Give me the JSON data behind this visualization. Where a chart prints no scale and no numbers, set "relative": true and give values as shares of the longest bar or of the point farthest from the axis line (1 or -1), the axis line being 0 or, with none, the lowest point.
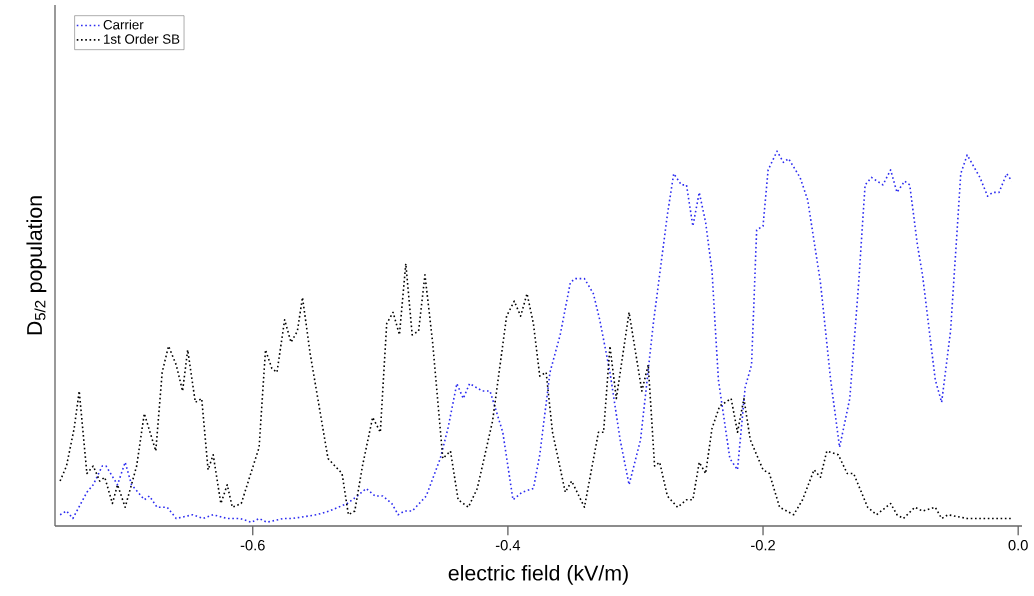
{
  "chart_data": {
    "type": "line",
    "relative": true,
    "xlabel": "electric field (kV/m)",
    "ylabel": "D$_{5/2}$ population",
    "xlim": [
      -0.755,
      0.003
    ],
    "xticks": [
      -0.6,
      -0.4,
      -0.2,
      {
        "value": 0,
        "label": "0.0"
      }
    ],
    "legend": "top left",
    "marker": "none",
    "line_style": "dotted",
    "grid": false,
    "series": [
      {
        "name": "Carrier",
        "color": "#2b2bf0",
        "x": [
          -0.751,
          -0.746,
          -0.741,
          -0.73,
          -0.725,
          -0.718,
          -0.715,
          -0.706,
          -0.7,
          -0.695,
          -0.685,
          -0.681,
          -0.675,
          -0.667,
          -0.66,
          -0.647,
          -0.639,
          -0.631,
          -0.62,
          -0.61,
          -0.601,
          -0.595,
          -0.589,
          -0.576,
          -0.569,
          -0.55,
          -0.54,
          -0.526,
          -0.518,
          -0.511,
          -0.504,
          -0.498,
          -0.491,
          -0.486,
          -0.481,
          -0.475,
          -0.464,
          -0.453,
          -0.447,
          -0.44,
          -0.435,
          -0.43,
          -0.42,
          -0.414,
          -0.404,
          -0.396,
          -0.389,
          -0.38,
          -0.375,
          -0.367,
          -0.359,
          -0.351,
          -0.347,
          -0.34,
          -0.333,
          -0.328,
          -0.32,
          -0.312,
          -0.305,
          -0.296,
          -0.286,
          -0.275,
          -0.27,
          -0.264,
          -0.26,
          -0.255,
          -0.25,
          -0.245,
          -0.24,
          -0.235,
          -0.226,
          -0.22,
          -0.214,
          -0.209,
          -0.205,
          -0.2,
          -0.196,
          -0.189,
          -0.184,
          -0.18,
          -0.171,
          -0.165,
          -0.155,
          -0.147,
          -0.14,
          -0.132,
          -0.125,
          -0.12,
          -0.115,
          -0.106,
          -0.1,
          -0.095,
          -0.089,
          -0.085,
          -0.079,
          -0.075,
          -0.065,
          -0.06,
          -0.053,
          -0.045,
          -0.04,
          -0.03,
          -0.024,
          -0.02,
          -0.015,
          -0.009,
          -0.005
        ],
        "values": [
          0.03,
          0.04,
          0.02,
          0.09,
          0.11,
          0.16,
          0.16,
          0.11,
          0.17,
          0.11,
          0.07,
          0.08,
          0.05,
          0.05,
          0.02,
          0.03,
          0.02,
          0.03,
          0.02,
          0.02,
          0.01,
          0.02,
          0.01,
          0.02,
          0.02,
          0.03,
          0.04,
          0.06,
          0.08,
          0.1,
          0.08,
          0.08,
          0.06,
          0.03,
          0.04,
          0.04,
          0.08,
          0.18,
          0.26,
          0.38,
          0.34,
          0.38,
          0.36,
          0.36,
          0.25,
          0.07,
          0.09,
          0.1,
          0.19,
          0.41,
          0.51,
          0.65,
          0.66,
          0.66,
          0.62,
          0.55,
          0.41,
          0.23,
          0.11,
          0.23,
          0.54,
          0.83,
          0.94,
          0.91,
          0.91,
          0.8,
          0.89,
          0.81,
          0.68,
          0.39,
          0.18,
          0.15,
          0.37,
          0.43,
          0.79,
          0.8,
          0.95,
          1.0,
          0.97,
          0.98,
          0.93,
          0.87,
          0.65,
          0.39,
          0.21,
          0.34,
          0.65,
          0.91,
          0.93,
          0.91,
          0.95,
          0.89,
          0.92,
          0.91,
          0.75,
          0.67,
          0.39,
          0.33,
          0.52,
          0.94,
          0.99,
          0.93,
          0.88,
          0.89,
          0.89,
          0.94,
          0.92
        ]
      },
      {
        "name": "1st Order SB",
        "color": "#000000",
        "x": [
          -0.751,
          -0.746,
          -0.74,
          -0.736,
          -0.73,
          -0.725,
          -0.72,
          -0.716,
          -0.71,
          -0.706,
          -0.7,
          -0.691,
          -0.685,
          -0.676,
          -0.671,
          -0.666,
          -0.66,
          -0.655,
          -0.651,
          -0.645,
          -0.64,
          -0.635,
          -0.631,
          -0.625,
          -0.62,
          -0.616,
          -0.609,
          -0.595,
          -0.59,
          -0.585,
          -0.581,
          -0.575,
          -0.57,
          -0.565,
          -0.561,
          -0.555,
          -0.55,
          -0.541,
          -0.53,
          -0.525,
          -0.52,
          -0.514,
          -0.506,
          -0.5,
          -0.495,
          -0.49,
          -0.485,
          -0.48,
          -0.475,
          -0.47,
          -0.465,
          -0.459,
          -0.451,
          -0.445,
          -0.439,
          -0.431,
          -0.424,
          -0.412,
          -0.401,
          -0.395,
          -0.39,
          -0.385,
          -0.38,
          -0.375,
          -0.37,
          -0.365,
          -0.355,
          -0.35,
          -0.34,
          -0.329,
          -0.325,
          -0.32,
          -0.315,
          -0.305,
          -0.295,
          -0.29,
          -0.285,
          -0.281,
          -0.275,
          -0.267,
          -0.26,
          -0.255,
          -0.25,
          -0.245,
          -0.24,
          -0.234,
          -0.225,
          -0.22,
          -0.215,
          -0.21,
          -0.2,
          -0.195,
          -0.187,
          -0.176,
          -0.169,
          -0.16,
          -0.155,
          -0.15,
          -0.141,
          -0.134,
          -0.129,
          -0.118,
          -0.111,
          -0.1,
          -0.095,
          -0.09,
          -0.081,
          -0.075,
          -0.065,
          -0.06,
          -0.055,
          -0.04,
          -0.03,
          -0.024,
          -0.005
        ],
        "values": [
          0.12,
          0.16,
          0.26,
          0.36,
          0.14,
          0.16,
          0.12,
          0.13,
          0.06,
          0.11,
          0.05,
          0.16,
          0.3,
          0.2,
          0.41,
          0.48,
          0.43,
          0.36,
          0.47,
          0.33,
          0.34,
          0.15,
          0.19,
          0.06,
          0.11,
          0.05,
          0.06,
          0.21,
          0.47,
          0.42,
          0.41,
          0.55,
          0.49,
          0.52,
          0.61,
          0.46,
          0.36,
          0.18,
          0.14,
          0.03,
          0.04,
          0.16,
          0.29,
          0.25,
          0.54,
          0.57,
          0.51,
          0.7,
          0.51,
          0.52,
          0.67,
          0.49,
          0.18,
          0.2,
          0.07,
          0.05,
          0.1,
          0.28,
          0.56,
          0.6,
          0.56,
          0.62,
          0.54,
          0.4,
          0.41,
          0.25,
          0.09,
          0.12,
          0.05,
          0.25,
          0.25,
          0.48,
          0.34,
          0.57,
          0.36,
          0.43,
          0.16,
          0.17,
          0.08,
          0.05,
          0.07,
          0.07,
          0.17,
          0.14,
          0.26,
          0.32,
          0.34,
          0.25,
          0.34,
          0.23,
          0.15,
          0.14,
          0.05,
          0.03,
          0.07,
          0.15,
          0.13,
          0.2,
          0.19,
          0.14,
          0.14,
          0.05,
          0.03,
          0.06,
          0.03,
          0.02,
          0.05,
          0.04,
          0.05,
          0.02,
          0.03,
          0.02,
          0.02,
          0.02,
          0.02
        ]
      }
    ]
  }
}
